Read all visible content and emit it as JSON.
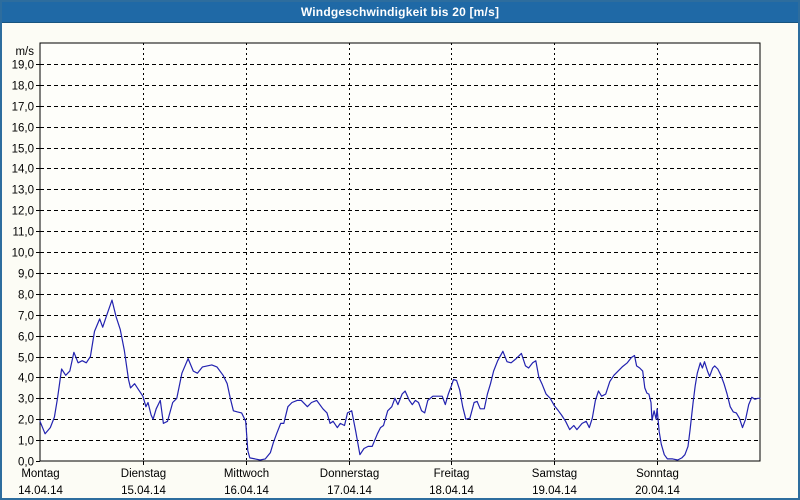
{
  "title_bar": {
    "title": "Windgeschwindigkeit bis 20 [m/s]"
  },
  "colors": {
    "titlebar_bg": "#1f69a6",
    "frame": "#2d6d9e",
    "page_bg": "#fcfcf5",
    "plot_bg": "#fefefa",
    "axis": "#000000",
    "grid": "#000000",
    "label_text": "#000000",
    "title_text": "#ffffff",
    "line": "#2323b0"
  },
  "chart_data": {
    "type": "line",
    "title": "Windgeschwindigkeit bis 20 [m/s]",
    "y_unit_label": "m/s",
    "ylim": [
      0,
      20
    ],
    "y_tick_step": 1,
    "y_tick_labels": [
      "0,0",
      "1,0",
      "2,0",
      "3,0",
      "4,0",
      "5,0",
      "6,0",
      "7,0",
      "8,0",
      "9,0",
      "10,0",
      "11,0",
      "12,0",
      "13,0",
      "14,0",
      "15,0",
      "16,0",
      "17,0",
      "18,0",
      "19,0"
    ],
    "xlim_days": [
      0,
      7
    ],
    "x_days": [
      {
        "name": "Montag",
        "date": "14.04.14"
      },
      {
        "name": "Dienstag",
        "date": "15.04.14"
      },
      {
        "name": "Mittwoch",
        "date": "16.04.14"
      },
      {
        "name": "Donnerstag",
        "date": "17.04.14"
      },
      {
        "name": "Freitag",
        "date": "18.04.14"
      },
      {
        "name": "Samstag",
        "date": "19.04.14"
      },
      {
        "name": "Sonntag",
        "date": "20.04.14"
      }
    ],
    "grid": "dashed",
    "legend": "none",
    "series": [
      {
        "name": "Windgeschwindigkeit",
        "color": "#2323b0",
        "points": [
          [
            0.0,
            1.9
          ],
          [
            0.05,
            1.3
          ],
          [
            0.1,
            1.6
          ],
          [
            0.14,
            2.1
          ],
          [
            0.17,
            3.0
          ],
          [
            0.21,
            4.4
          ],
          [
            0.25,
            4.1
          ],
          [
            0.29,
            4.3
          ],
          [
            0.33,
            5.2
          ],
          [
            0.37,
            4.7
          ],
          [
            0.41,
            4.8
          ],
          [
            0.45,
            4.7
          ],
          [
            0.49,
            5.0
          ],
          [
            0.53,
            6.2
          ],
          [
            0.58,
            6.8
          ],
          [
            0.61,
            6.4
          ],
          [
            0.65,
            7.0
          ],
          [
            0.7,
            7.7
          ],
          [
            0.74,
            6.9
          ],
          [
            0.78,
            6.3
          ],
          [
            0.82,
            5.3
          ],
          [
            0.86,
            3.9
          ],
          [
            0.88,
            3.5
          ],
          [
            0.92,
            3.7
          ],
          [
            0.96,
            3.4
          ],
          [
            1.0,
            3.1
          ],
          [
            1.03,
            2.6
          ],
          [
            1.05,
            2.8
          ],
          [
            1.08,
            2.2
          ],
          [
            1.1,
            2.0
          ],
          [
            1.13,
            2.5
          ],
          [
            1.17,
            2.9
          ],
          [
            1.2,
            1.8
          ],
          [
            1.24,
            1.9
          ],
          [
            1.29,
            2.8
          ],
          [
            1.33,
            3.0
          ],
          [
            1.38,
            4.2
          ],
          [
            1.44,
            4.9
          ],
          [
            1.49,
            4.3
          ],
          [
            1.53,
            4.2
          ],
          [
            1.58,
            4.5
          ],
          [
            1.67,
            4.6
          ],
          [
            1.72,
            4.5
          ],
          [
            1.78,
            4.1
          ],
          [
            1.82,
            3.7
          ],
          [
            1.85,
            3.0
          ],
          [
            1.88,
            2.4
          ],
          [
            1.92,
            2.35
          ],
          [
            1.96,
            2.3
          ],
          [
            2.0,
            1.9
          ],
          [
            2.02,
            0.5
          ],
          [
            2.04,
            0.15
          ],
          [
            2.09,
            0.1
          ],
          [
            2.14,
            0.05
          ],
          [
            2.19,
            0.1
          ],
          [
            2.24,
            0.4
          ],
          [
            2.27,
            0.9
          ],
          [
            2.3,
            1.3
          ],
          [
            2.34,
            1.8
          ],
          [
            2.37,
            1.8
          ],
          [
            2.41,
            2.6
          ],
          [
            2.45,
            2.8
          ],
          [
            2.5,
            2.9
          ],
          [
            2.54,
            2.9
          ],
          [
            2.6,
            2.6
          ],
          [
            2.64,
            2.8
          ],
          [
            2.69,
            2.9
          ],
          [
            2.75,
            2.5
          ],
          [
            2.79,
            2.3
          ],
          [
            2.82,
            1.8
          ],
          [
            2.85,
            1.9
          ],
          [
            2.89,
            1.6
          ],
          [
            2.92,
            1.8
          ],
          [
            2.96,
            1.7
          ],
          [
            2.99,
            2.3
          ],
          [
            3.03,
            2.4
          ],
          [
            3.07,
            1.4
          ],
          [
            3.11,
            0.3
          ],
          [
            3.15,
            0.6
          ],
          [
            3.19,
            0.7
          ],
          [
            3.23,
            0.7
          ],
          [
            3.28,
            1.3
          ],
          [
            3.31,
            1.6
          ],
          [
            3.34,
            1.7
          ],
          [
            3.38,
            2.4
          ],
          [
            3.42,
            2.6
          ],
          [
            3.45,
            3.0
          ],
          [
            3.48,
            2.7
          ],
          [
            3.52,
            3.2
          ],
          [
            3.55,
            3.35
          ],
          [
            3.59,
            2.9
          ],
          [
            3.62,
            2.7
          ],
          [
            3.65,
            2.9
          ],
          [
            3.68,
            2.8
          ],
          [
            3.71,
            2.4
          ],
          [
            3.74,
            2.3
          ],
          [
            3.77,
            2.9
          ],
          [
            3.82,
            3.1
          ],
          [
            3.87,
            3.1
          ],
          [
            3.91,
            3.1
          ],
          [
            3.94,
            2.7
          ],
          [
            3.97,
            3.2
          ],
          [
            4.0,
            3.6
          ],
          [
            4.02,
            3.9
          ],
          [
            4.05,
            3.85
          ],
          [
            4.08,
            3.4
          ],
          [
            4.11,
            2.6
          ],
          [
            4.14,
            2.0
          ],
          [
            4.18,
            2.05
          ],
          [
            4.22,
            2.8
          ],
          [
            4.25,
            2.85
          ],
          [
            4.28,
            2.5
          ],
          [
            4.32,
            2.5
          ],
          [
            4.35,
            3.2
          ],
          [
            4.38,
            3.7
          ],
          [
            4.41,
            4.3
          ],
          [
            4.45,
            4.8
          ],
          [
            4.5,
            5.25
          ],
          [
            4.54,
            4.75
          ],
          [
            4.58,
            4.7
          ],
          [
            4.63,
            4.9
          ],
          [
            4.68,
            5.15
          ],
          [
            4.72,
            4.55
          ],
          [
            4.75,
            4.45
          ],
          [
            4.79,
            4.7
          ],
          [
            4.82,
            4.8
          ],
          [
            4.85,
            4.0
          ],
          [
            4.88,
            3.7
          ],
          [
            4.92,
            3.2
          ],
          [
            4.96,
            3.0
          ],
          [
            5.0,
            2.65
          ],
          [
            5.04,
            2.4
          ],
          [
            5.07,
            2.2
          ],
          [
            5.11,
            1.9
          ],
          [
            5.15,
            1.5
          ],
          [
            5.19,
            1.7
          ],
          [
            5.22,
            1.5
          ],
          [
            5.27,
            1.8
          ],
          [
            5.31,
            1.9
          ],
          [
            5.34,
            1.6
          ],
          [
            5.37,
            2.05
          ],
          [
            5.4,
            2.9
          ],
          [
            5.43,
            3.35
          ],
          [
            5.46,
            3.1
          ],
          [
            5.5,
            3.2
          ],
          [
            5.54,
            3.8
          ],
          [
            5.58,
            4.1
          ],
          [
            5.62,
            4.3
          ],
          [
            5.66,
            4.5
          ],
          [
            5.71,
            4.7
          ],
          [
            5.75,
            4.95
          ],
          [
            5.78,
            5.05
          ],
          [
            5.8,
            4.55
          ],
          [
            5.83,
            4.45
          ],
          [
            5.86,
            4.3
          ],
          [
            5.88,
            3.5
          ],
          [
            5.9,
            3.25
          ],
          [
            5.92,
            3.2
          ],
          [
            5.94,
            2.8
          ],
          [
            5.95,
            1.95
          ],
          [
            5.97,
            2.4
          ],
          [
            5.99,
            2.0
          ],
          [
            6.0,
            2.5
          ],
          [
            6.02,
            1.4
          ],
          [
            6.04,
            0.8
          ],
          [
            6.07,
            0.3
          ],
          [
            6.1,
            0.1
          ],
          [
            6.15,
            0.1
          ],
          [
            6.2,
            0.05
          ],
          [
            6.24,
            0.15
          ],
          [
            6.27,
            0.3
          ],
          [
            6.3,
            0.7
          ],
          [
            6.32,
            1.5
          ],
          [
            6.35,
            2.8
          ],
          [
            6.37,
            3.6
          ],
          [
            6.39,
            4.2
          ],
          [
            6.42,
            4.7
          ],
          [
            6.44,
            4.45
          ],
          [
            6.46,
            4.75
          ],
          [
            6.49,
            4.3
          ],
          [
            6.51,
            4.05
          ],
          [
            6.54,
            4.45
          ],
          [
            6.56,
            4.55
          ],
          [
            6.59,
            4.4
          ],
          [
            6.62,
            4.1
          ],
          [
            6.65,
            3.7
          ],
          [
            6.68,
            3.2
          ],
          [
            6.71,
            2.6
          ],
          [
            6.74,
            2.35
          ],
          [
            6.77,
            2.3
          ],
          [
            6.8,
            2.05
          ],
          [
            6.83,
            1.6
          ],
          [
            6.86,
            2.0
          ],
          [
            6.89,
            2.7
          ],
          [
            6.92,
            3.05
          ],
          [
            6.95,
            2.95
          ],
          [
            6.98,
            3.0
          ],
          [
            7.0,
            3.0
          ]
        ]
      }
    ]
  }
}
